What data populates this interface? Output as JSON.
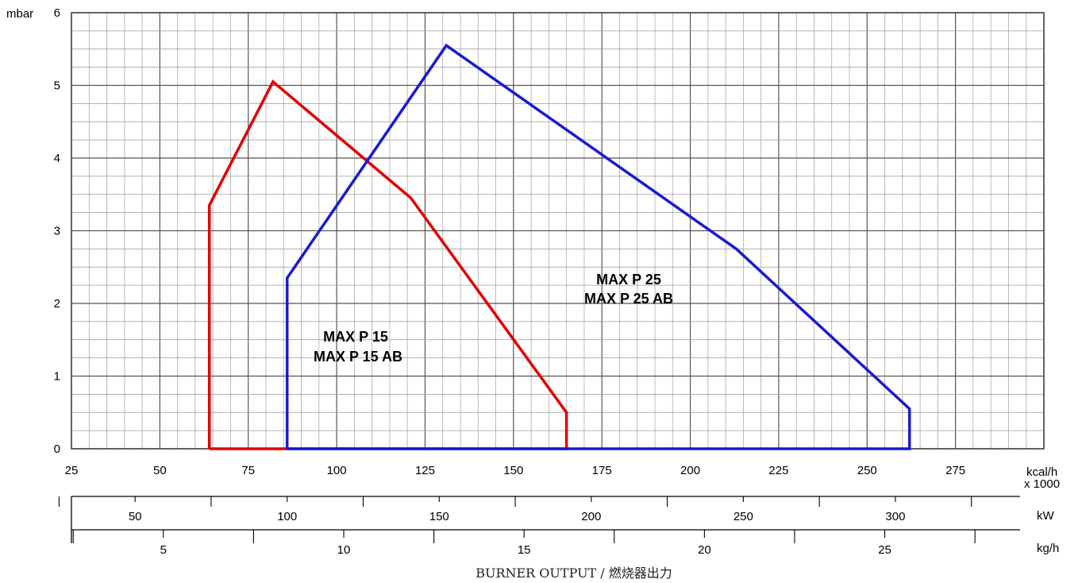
{
  "chart_data": {
    "type": "area",
    "xlabel": "BURNER OUTPUT / 燃烧器出力",
    "x_unit": "kcal/h",
    "x_unit_multiplier": "x 1000",
    "y_unit": "mbar",
    "xlim": [
      25,
      300
    ],
    "ylim": [
      0,
      6
    ],
    "x_ticks": [
      25,
      50,
      75,
      100,
      125,
      150,
      175,
      200,
      225,
      250,
      275
    ],
    "y_ticks": [
      0,
      1,
      2,
      3,
      4,
      5,
      6
    ],
    "grid": true,
    "secondary_axes": [
      {
        "unit": "kW",
        "ticks": [
          50,
          100,
          150,
          200,
          250,
          300
        ]
      },
      {
        "unit": "kg/h",
        "ticks": [
          5,
          10,
          15,
          20,
          25
        ]
      }
    ],
    "series": [
      {
        "name": "MAX P 15",
        "name2": "MAX P 15 AB",
        "color": "#e00000",
        "x": [
          64,
          64,
          82,
          121,
          165,
          165,
          64
        ],
        "y": [
          0,
          3.35,
          5.05,
          3.45,
          0.5,
          0,
          0
        ]
      },
      {
        "name": "MAX P 25",
        "name2": "MAX P 25 AB",
        "color": "#1a1ad0",
        "x": [
          86,
          86,
          131,
          213,
          262,
          262,
          86
        ],
        "y": [
          0,
          2.35,
          5.55,
          2.75,
          0.55,
          0,
          0
        ]
      }
    ]
  }
}
